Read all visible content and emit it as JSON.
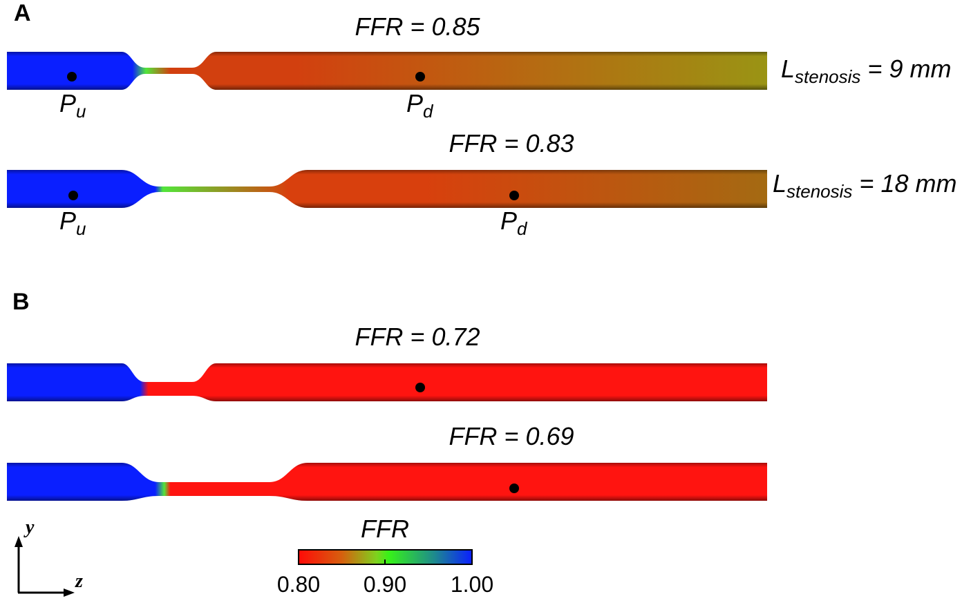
{
  "panels": [
    {
      "letter": "A",
      "vessels": [
        {
          "ffr_label": "FFR = 0.85",
          "side_label": {
            "main": "L",
            "sub": "stenosis",
            "rest": " = 9 mm"
          },
          "upstream_label": {
            "main": "P",
            "sub": "u"
          },
          "downstream_label": {
            "main": "P",
            "sub": "d"
          },
          "stenosis_length_mm": 9,
          "distal_ffr": 0.85,
          "colors": {
            "proximal": "#0a1fff",
            "throat": "#52e63a",
            "distal_start": "#d2400f",
            "distal_end": "#9a9414"
          }
        },
        {
          "ffr_label": "FFR = 0.83",
          "side_label": {
            "main": "L",
            "sub": "stenosis",
            "rest": " = 18 mm"
          },
          "upstream_label": {
            "main": "P",
            "sub": "u"
          },
          "downstream_label": {
            "main": "P",
            "sub": "d"
          },
          "stenosis_length_mm": 18,
          "distal_ffr": 0.83,
          "colors": {
            "proximal": "#0a1fff",
            "throat": "#52e63a",
            "distal_start": "#d8400d",
            "distal_end": "#a46a12"
          }
        }
      ]
    },
    {
      "letter": "B",
      "vessels": [
        {
          "ffr_label": "FFR = 0.72",
          "stenosis_length_mm": 9,
          "distal_ffr": 0.72,
          "colors": {
            "proximal": "#0a1fff",
            "throat": "#ff1410",
            "distal_start": "#ff1410",
            "distal_end": "#ff1410"
          }
        },
        {
          "ffr_label": "FFR = 0.69",
          "stenosis_length_mm": 18,
          "distal_ffr": 0.69,
          "colors": {
            "proximal": "#0a1fff",
            "throat": "#ff1410",
            "distal_start": "#ff1410",
            "distal_end": "#ff1410"
          }
        }
      ]
    }
  ],
  "colorbar": {
    "title": "FFR",
    "ticks": [
      "0.80",
      "0.90",
      "1.00"
    ],
    "min": 0.8,
    "max": 1.0,
    "colors": [
      "#ff0a08",
      "#d6600e",
      "#7ed21e",
      "#37f218",
      "#1e8b8c",
      "#0a1fff"
    ]
  },
  "axes": {
    "vertical": "y",
    "horizontal": "z"
  }
}
